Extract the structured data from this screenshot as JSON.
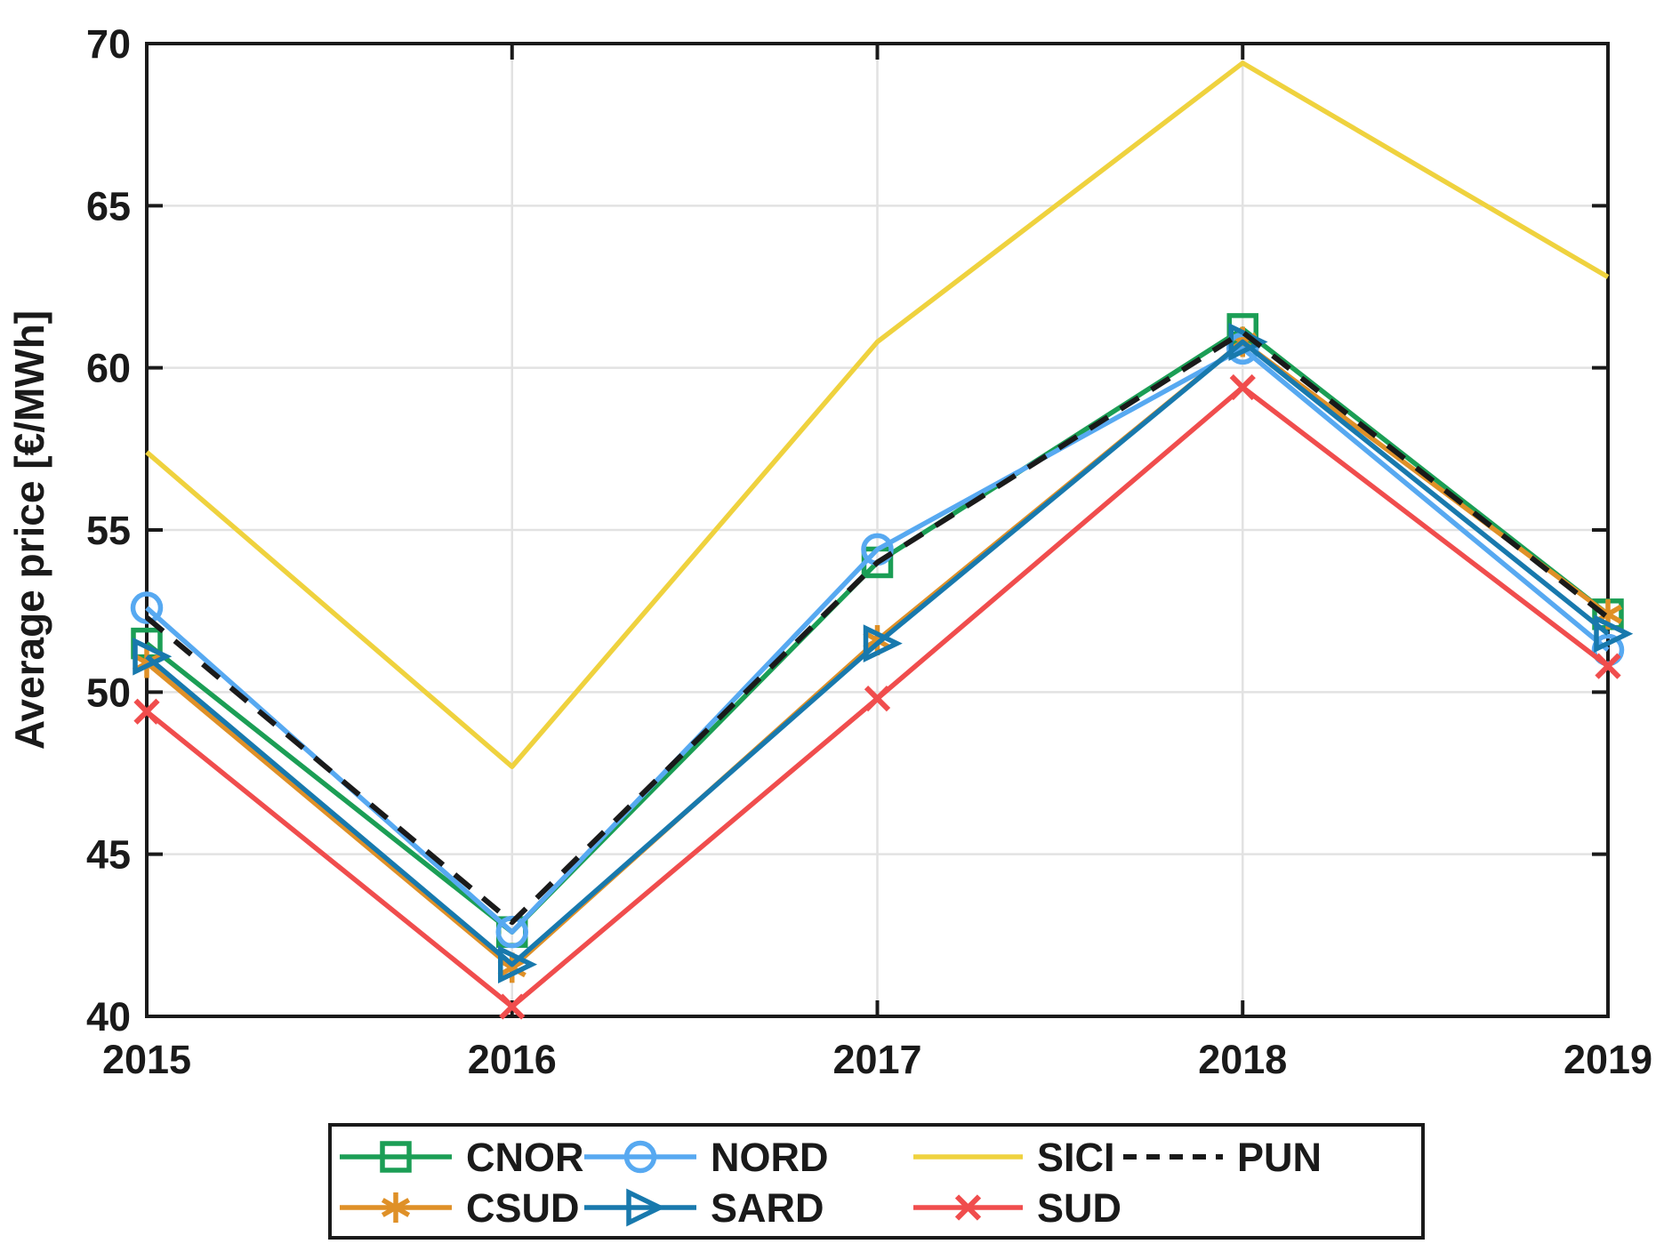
{
  "chart_data": {
    "type": "line",
    "title": "",
    "xlabel": "",
    "ylabel": "Average price [€/MWh]",
    "categories": [
      2015,
      2016,
      2017,
      2018,
      2019
    ],
    "ylim": [
      40,
      70
    ],
    "yticks": [
      40,
      45,
      50,
      55,
      60,
      65,
      70
    ],
    "grid": true,
    "series": [
      {
        "name": "CNOR",
        "color": "#1B9E55",
        "marker": "square",
        "dash": false,
        "values": [
          51.5,
          42.6,
          54.0,
          61.2,
          52.4
        ]
      },
      {
        "name": "CSUD",
        "color": "#DF9027",
        "marker": "asterisk",
        "dash": false,
        "values": [
          50.9,
          41.5,
          51.6,
          60.8,
          52.4
        ]
      },
      {
        "name": "NORD",
        "color": "#57A9F1",
        "marker": "circle",
        "dash": false,
        "values": [
          52.6,
          42.6,
          54.4,
          60.6,
          51.3
        ]
      },
      {
        "name": "SARD",
        "color": "#1879AD",
        "marker": "triangle-right",
        "dash": false,
        "values": [
          51.1,
          41.6,
          51.5,
          60.8,
          51.8
        ]
      },
      {
        "name": "SICI",
        "color": "#EFD23E",
        "marker": "none",
        "dash": false,
        "values": [
          57.4,
          47.7,
          60.8,
          69.4,
          62.8
        ]
      },
      {
        "name": "SUD",
        "color": "#F04D4D",
        "marker": "x",
        "dash": false,
        "values": [
          49.4,
          40.3,
          49.8,
          59.4,
          50.8
        ]
      },
      {
        "name": "PUN",
        "color": "#1A1A1A",
        "marker": "none",
        "dash": true,
        "values": [
          52.3,
          42.9,
          54.0,
          61.1,
          52.3
        ]
      }
    ],
    "legend": {
      "position": "bottom",
      "rows": [
        [
          "CNOR",
          "NORD",
          "SICI",
          "PUN"
        ],
        [
          "CSUD",
          "SARD",
          "SUD"
        ]
      ]
    },
    "axis_color": "#1A1A1A",
    "grid_color": "#E2E2E2"
  }
}
